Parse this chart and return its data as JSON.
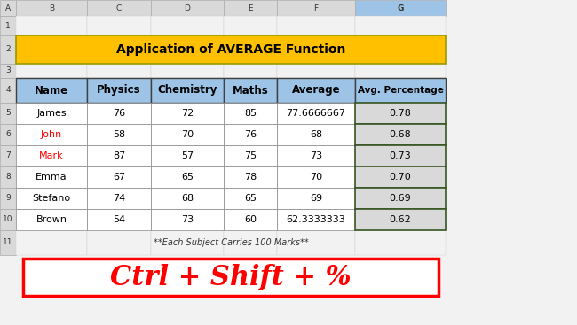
{
  "title": "Application of AVERAGE Function",
  "title_bg": "#FFC000",
  "title_color": "#000000",
  "col_headers": [
    "Name",
    "Physics",
    "Chemistry",
    "Maths",
    "Average",
    "Avg. Percentage"
  ],
  "header_bg": "#9DC3E6",
  "header_border": "#404040",
  "rows": [
    [
      "James",
      "76",
      "72",
      "85",
      "77.6666667",
      "0.78"
    ],
    [
      "John",
      "58",
      "70",
      "76",
      "68",
      "0.68"
    ],
    [
      "Mark",
      "87",
      "57",
      "75",
      "73",
      "0.73"
    ],
    [
      "Emma",
      "67",
      "65",
      "78",
      "70",
      "0.70"
    ],
    [
      "Stefano",
      "74",
      "68",
      "65",
      "69",
      "0.69"
    ],
    [
      "Brown",
      "54",
      "73",
      "60",
      "62.3333333",
      "0.62"
    ]
  ],
  "name_colors": [
    "#000000",
    "#FF0000",
    "#FF0000",
    "#000000",
    "#000000",
    "#000000"
  ],
  "row_bg_white": "#FFFFFF",
  "row_bg_gray": "#D9D9D9",
  "avg_pct_col_bg": "#D9D9D9",
  "avg_pct_col_border": "#375623",
  "footnote": "**Each Subject Carries 100 Marks**",
  "shortcut_text": "Ctrl + Shift + %",
  "shortcut_color": "#FF0000",
  "shortcut_box_border": "#FF0000",
  "shortcut_box_bg": "#FFFFFF",
  "excel_col_headers": [
    "A",
    "B",
    "C",
    "D",
    "E",
    "F",
    "G"
  ],
  "excel_col_header_bg": "#D9D9D9",
  "excel_row_numbers": [
    "1",
    "2",
    "3",
    "4",
    "5",
    "6",
    "7",
    "8",
    "9",
    "10",
    "11"
  ],
  "bg_color": "#F2F2F2"
}
